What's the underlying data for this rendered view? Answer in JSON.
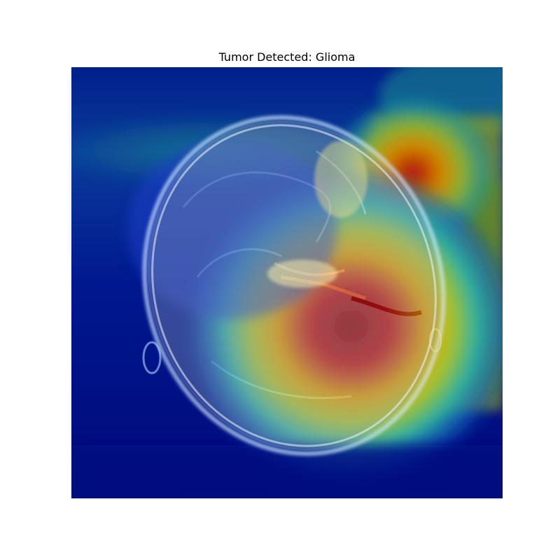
{
  "figure": {
    "title": "Tumor Detected: Glioma"
  },
  "overlay": {
    "colormap": "jet",
    "colors": {
      "low": "#000a8c",
      "mid_low": "#0a5cc8",
      "mid": "#1fa39a",
      "mid_high": "#c8c21a",
      "high": "#b3000a"
    }
  }
}
